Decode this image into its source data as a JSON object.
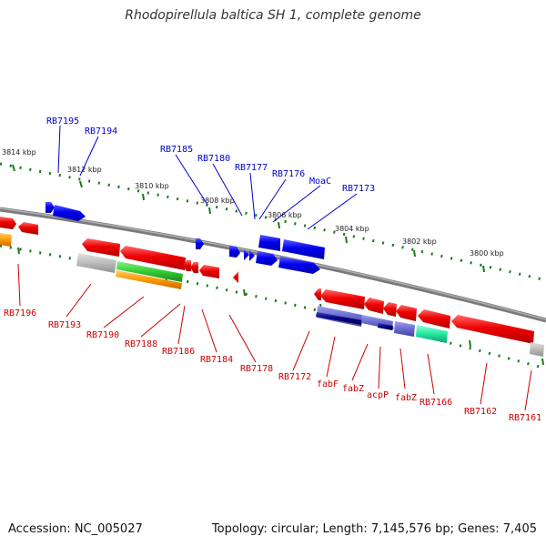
{
  "title": "Rhodopirellula baltica SH 1, complete genome",
  "footer": {
    "accession": "Accession: NC_005027",
    "summary": "Topology: circular; Length: 7,145,576 bp; Genes: 7,405"
  },
  "colors": {
    "background": "#ffffff",
    "backbone": "#808080",
    "scale_ticks": "#1a7a1a",
    "strand_plus_gene": "#0000ee",
    "strand_plus_label": "#0000cc",
    "strand_minus_gene": "#ee0000",
    "strand_minus_label": "#cc0000",
    "feature_grey": "#b8b8b8",
    "feature_green": "#33cc33",
    "feature_orange": "#ff9900",
    "feature_navy": "#000080",
    "feature_slate": "#6a6ad0",
    "feature_teal": "#22e8a0"
  },
  "scale_labels": [
    "3814 kbp",
    "3812 kbp",
    "3810 kbp",
    "3808 kbp",
    "3806 kbp",
    "3804 kbp",
    "3802 kbp",
    "3800 kbp"
  ],
  "top_gene_labels": [
    "RB7195",
    "RB7194",
    "RB7185",
    "RB7180",
    "RB7177",
    "RB7176",
    "MoaC",
    "RB7173"
  ],
  "bottom_gene_labels": [
    "RB7196",
    "RB7193",
    "RB7190",
    "RB7188",
    "RB7186",
    "RB7184",
    "RB7178",
    "RB7172",
    "fabF",
    "fabZ",
    "acpP",
    "fabZ",
    "RB7166",
    "RB7162",
    "RB7161"
  ]
}
